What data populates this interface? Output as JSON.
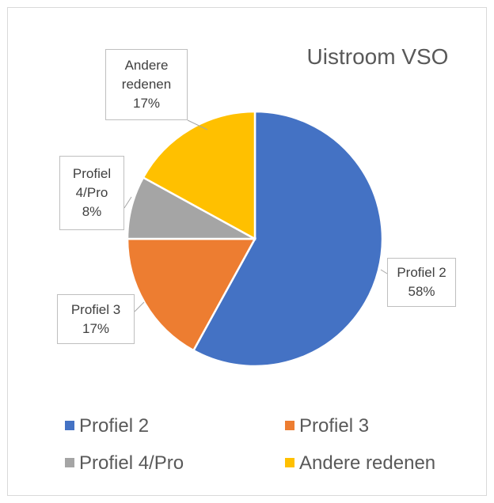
{
  "chart_data": {
    "type": "pie",
    "title": "Uistroom VSO",
    "categories": [
      "Profiel 2",
      "Profiel 3",
      "Profiel 4/Pro",
      "Andere redenen"
    ],
    "values": [
      58,
      17,
      8,
      17
    ],
    "value_labels": [
      "58%",
      "17%",
      "8%",
      "17%"
    ],
    "colors": [
      "#4472c4",
      "#ed7d31",
      "#a5a5a5",
      "#ffc000"
    ],
    "legend": "bottom"
  }
}
